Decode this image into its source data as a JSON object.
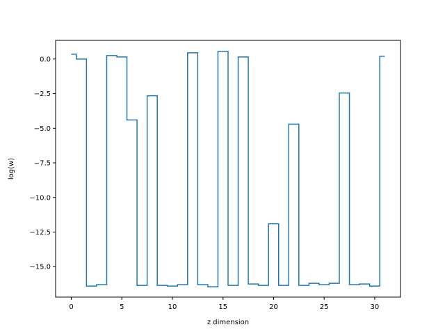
{
  "chart_data": {
    "type": "line",
    "drawstyle": "steps-mid",
    "title": "",
    "xlabel": "z dimension",
    "ylabel": "log(w)",
    "xlim": [
      -1.55,
      32.55
    ],
    "ylim": [
      -17.2,
      1.35
    ],
    "grid": false,
    "legend": "none",
    "x_ticks": [
      0,
      5,
      10,
      15,
      20,
      25,
      30
    ],
    "y_ticks": [
      0.0,
      -2.5,
      -5.0,
      -7.5,
      -10.0,
      -12.5,
      -15.0
    ],
    "x_tick_labels": [
      "0",
      "5",
      "10",
      "15",
      "20",
      "25",
      "30"
    ],
    "y_tick_labels": [
      "0.0",
      "−2.5",
      "−5.0",
      "−7.5",
      "−10.0",
      "−12.5",
      "−15.0"
    ],
    "series": [
      {
        "color": "#1f77b4",
        "x": [
          0,
          1,
          2,
          3,
          4,
          5,
          6,
          7,
          8,
          9,
          10,
          11,
          12,
          13,
          14,
          15,
          16,
          17,
          18,
          19,
          20,
          21,
          22,
          23,
          24,
          25,
          26,
          27,
          28,
          29,
          30,
          31
        ],
        "y": [
          0.35,
          0.0,
          -16.4,
          -16.3,
          0.25,
          0.15,
          -4.4,
          -16.35,
          -2.65,
          -16.35,
          -16.4,
          -16.3,
          0.45,
          -16.3,
          -16.45,
          0.55,
          -16.35,
          0.15,
          -16.25,
          -16.35,
          -11.9,
          -16.35,
          -4.7,
          -16.35,
          -16.2,
          -16.3,
          -16.2,
          -2.45,
          -16.3,
          -16.25,
          -16.4,
          0.2
        ]
      }
    ]
  }
}
